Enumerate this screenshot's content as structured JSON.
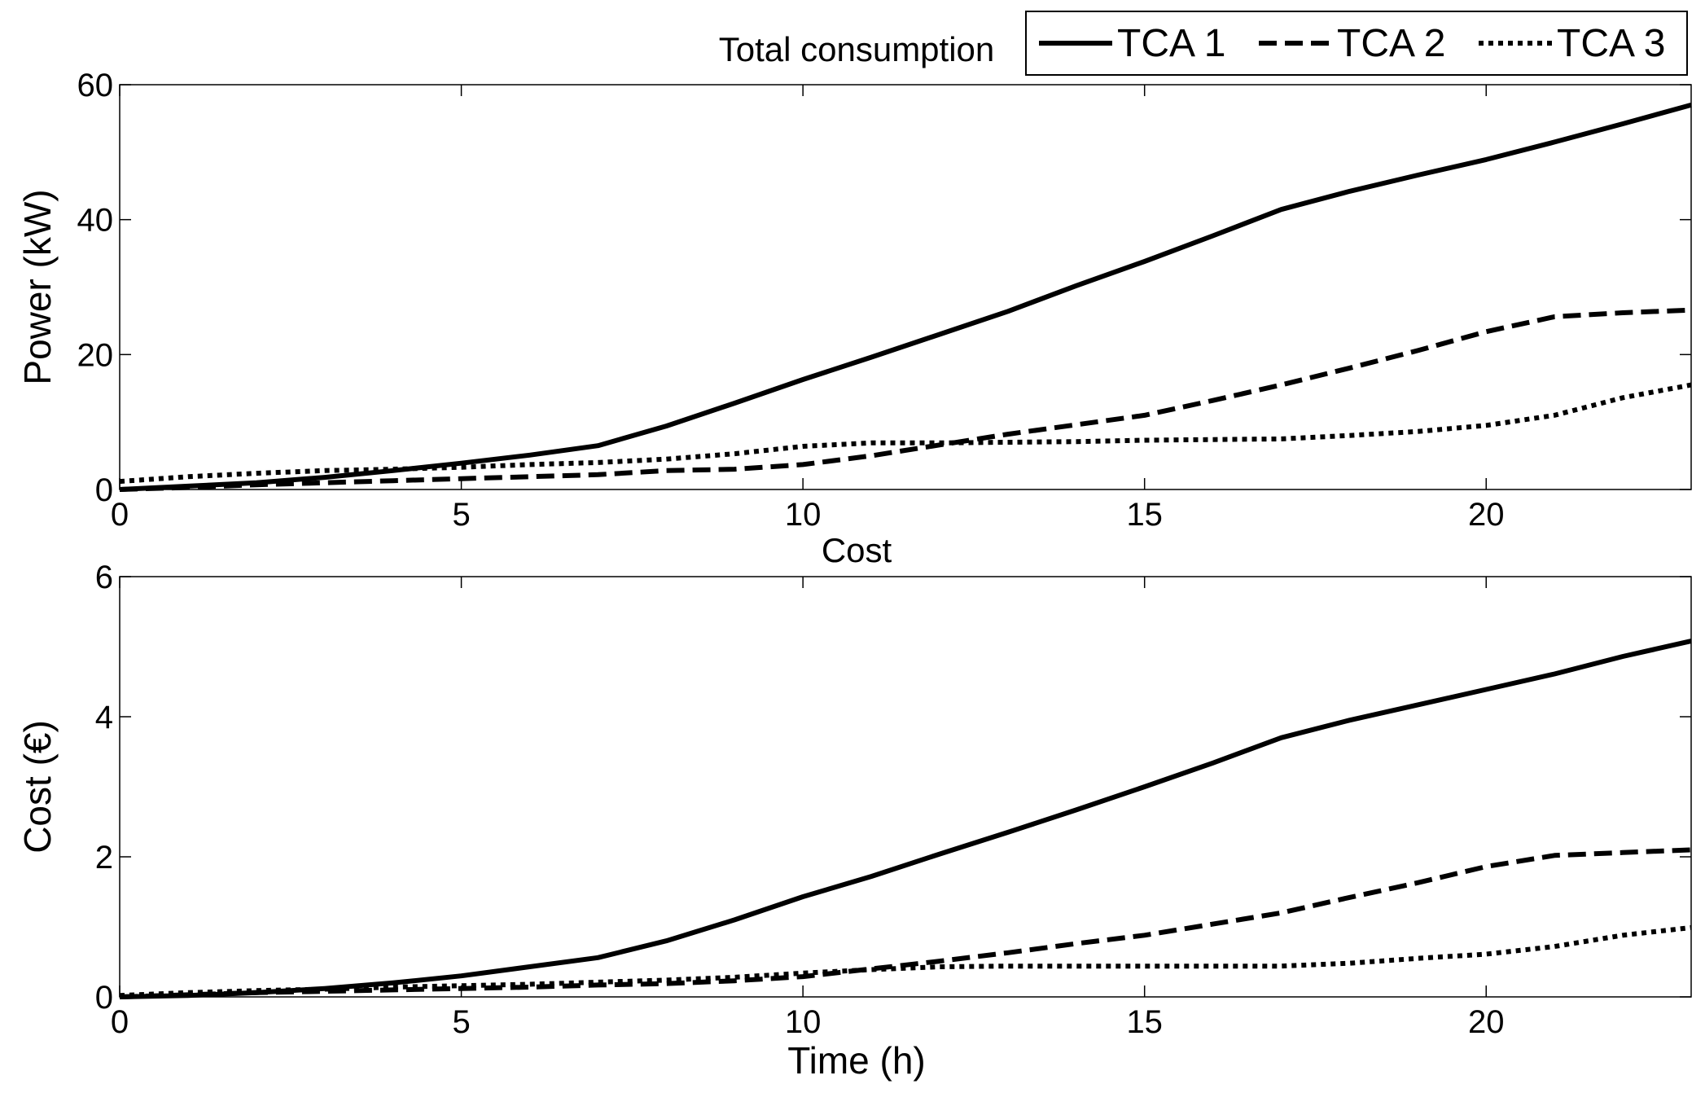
{
  "chart_data": [
    {
      "type": "line",
      "title": "Total consumption",
      "xlabel": "",
      "ylabel": "Power (kW)",
      "xlim": [
        0,
        23
      ],
      "ylim": [
        0,
        60
      ],
      "xticks": [
        0,
        5,
        10,
        15,
        20
      ],
      "yticks": [
        0,
        20,
        40,
        60
      ],
      "grid": false,
      "x": [
        0,
        1,
        2,
        3,
        4,
        5,
        6,
        7,
        8,
        9,
        10,
        11,
        12,
        13,
        14,
        15,
        16,
        17,
        18,
        19,
        20,
        21,
        22,
        23
      ],
      "series": [
        {
          "name": "TCA 1",
          "style": "solid",
          "values": [
            0,
            0.5,
            1.0,
            1.8,
            2.8,
            3.9,
            5.1,
            6.5,
            9.4,
            12.8,
            16.3,
            19.6,
            23.0,
            26.4,
            30.2,
            33.8,
            37.6,
            41.5,
            44.2,
            46.6,
            48.9,
            51.5,
            54.2,
            57.0
          ]
        },
        {
          "name": "TCA 2",
          "style": "dashed",
          "values": [
            0,
            0.3,
            0.7,
            1.0,
            1.3,
            1.6,
            1.9,
            2.2,
            2.8,
            3.0,
            3.7,
            5.0,
            6.6,
            8.2,
            9.6,
            11.0,
            13.2,
            15.5,
            18.0,
            20.6,
            23.4,
            25.6,
            26.2,
            26.6
          ]
        },
        {
          "name": "TCA 3",
          "style": "dotted",
          "values": [
            1.2,
            1.9,
            2.4,
            2.8,
            3.0,
            3.3,
            3.7,
            4.0,
            4.5,
            5.3,
            6.4,
            6.9,
            6.9,
            7.0,
            7.1,
            7.3,
            7.4,
            7.5,
            8.0,
            8.6,
            9.5,
            11.0,
            13.6,
            15.5
          ]
        }
      ]
    },
    {
      "type": "line",
      "title": "Cost",
      "xlabel": "Time (h)",
      "ylabel": "Cost (€)",
      "xlim": [
        0,
        23
      ],
      "ylim": [
        0,
        6
      ],
      "xticks": [
        0,
        5,
        10,
        15,
        20
      ],
      "yticks": [
        0,
        2,
        4,
        6
      ],
      "grid": false,
      "x": [
        0,
        1,
        2,
        3,
        4,
        5,
        6,
        7,
        8,
        9,
        10,
        11,
        12,
        13,
        14,
        15,
        16,
        17,
        18,
        19,
        20,
        21,
        22,
        23
      ],
      "series": [
        {
          "name": "TCA 1",
          "style": "solid",
          "values": [
            0,
            0.02,
            0.06,
            0.12,
            0.2,
            0.3,
            0.43,
            0.56,
            0.8,
            1.1,
            1.43,
            1.72,
            2.04,
            2.35,
            2.67,
            3.0,
            3.34,
            3.7,
            3.95,
            4.17,
            4.39,
            4.61,
            4.86,
            5.08
          ]
        },
        {
          "name": "TCA 2",
          "style": "dashed",
          "values": [
            0,
            0.03,
            0.06,
            0.08,
            0.1,
            0.12,
            0.14,
            0.17,
            0.19,
            0.23,
            0.29,
            0.4,
            0.51,
            0.63,
            0.76,
            0.88,
            1.04,
            1.2,
            1.42,
            1.63,
            1.86,
            2.02,
            2.06,
            2.1
          ]
        },
        {
          "name": "TCA 3",
          "style": "dotted",
          "values": [
            0.02,
            0.06,
            0.09,
            0.11,
            0.14,
            0.16,
            0.18,
            0.21,
            0.24,
            0.28,
            0.34,
            0.39,
            0.43,
            0.44,
            0.44,
            0.44,
            0.44,
            0.44,
            0.48,
            0.55,
            0.61,
            0.72,
            0.88,
            0.99
          ]
        }
      ]
    }
  ],
  "legend": {
    "placement": "top-right",
    "entries": [
      "TCA 1",
      "TCA 2",
      "TCA 3"
    ]
  }
}
